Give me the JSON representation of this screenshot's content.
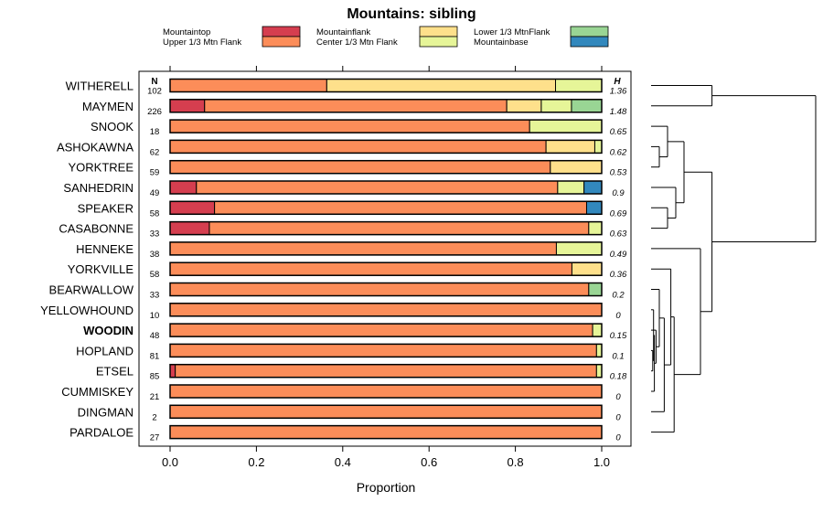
{
  "chart_data": {
    "type": "bar",
    "stacked": true,
    "orientation": "horizontal",
    "title": "Mountains: sibling",
    "xlabel": "Proportion",
    "ylabel": "",
    "xlim": [
      0,
      1
    ],
    "xticks": [
      "0.0",
      "0.2",
      "0.4",
      "0.6",
      "0.8",
      "1.0"
    ],
    "n_header": "N",
    "h_header": "H",
    "highlighted_category": "WOODIN",
    "legend": [
      {
        "name": "Mountaintop",
        "color": "#d53e4f"
      },
      {
        "name": "Upper 1/3 Mtn Flank",
        "color": "#fc8d59"
      },
      {
        "name": "Mountainflank",
        "color": "#fee08b"
      },
      {
        "name": "Center 1/3 Mtn Flank",
        "color": "#e6f598"
      },
      {
        "name": "Lower 1/3 MtnFlank",
        "color": "#99d594"
      },
      {
        "name": "Mountainbase",
        "color": "#3288bd"
      }
    ],
    "series_order": [
      "Mountaintop",
      "Upper 1/3 Mtn Flank",
      "Mountainflank",
      "Center 1/3 Mtn Flank",
      "Lower 1/3 MtnFlank",
      "Mountainbase"
    ],
    "rows": [
      {
        "name": "WITHERELL",
        "n": "102",
        "h": "1.36",
        "values": [
          0,
          0.363,
          0.53,
          0.107,
          0,
          0
        ]
      },
      {
        "name": "MAYMEN",
        "n": "226",
        "h": "1.48",
        "values": [
          0.08,
          0.7,
          0.08,
          0.07,
          0.07,
          0
        ]
      },
      {
        "name": "SNOOK",
        "n": "18",
        "h": "0.65",
        "values": [
          0,
          0.833,
          0,
          0.167,
          0,
          0
        ]
      },
      {
        "name": "ASHOKAWNA",
        "n": "62",
        "h": "0.62",
        "values": [
          0,
          0.871,
          0.113,
          0.016,
          0,
          0
        ]
      },
      {
        "name": "YORKTREE",
        "n": "59",
        "h": "0.53",
        "values": [
          0,
          0.881,
          0.119,
          0,
          0,
          0
        ]
      },
      {
        "name": "SANHEDRIN",
        "n": "49",
        "h": "0.9",
        "values": [
          0.061,
          0.837,
          0,
          0.061,
          0,
          0.041
        ]
      },
      {
        "name": "SPEAKER",
        "n": "58",
        "h": "0.69",
        "values": [
          0.103,
          0.862,
          0,
          0,
          0,
          0.035
        ]
      },
      {
        "name": "CASABONNE",
        "n": "33",
        "h": "0.63",
        "values": [
          0.091,
          0.879,
          0,
          0.03,
          0,
          0
        ]
      },
      {
        "name": "HENNEKE",
        "n": "38",
        "h": "0.49",
        "values": [
          0,
          0.895,
          0,
          0.105,
          0,
          0
        ]
      },
      {
        "name": "YORKVILLE",
        "n": "58",
        "h": "0.36",
        "values": [
          0,
          0.931,
          0.069,
          0,
          0,
          0
        ]
      },
      {
        "name": "BEARWALLOW",
        "n": "33",
        "h": "0.2",
        "values": [
          0,
          0.97,
          0,
          0,
          0.03,
          0
        ]
      },
      {
        "name": "YELLOWHOUND",
        "n": "10",
        "h": "0",
        "values": [
          0,
          1.0,
          0,
          0,
          0,
          0
        ]
      },
      {
        "name": "WOODIN",
        "n": "48",
        "h": "0.15",
        "values": [
          0,
          0.979,
          0,
          0.021,
          0,
          0
        ]
      },
      {
        "name": "HOPLAND",
        "n": "81",
        "h": "0.1",
        "values": [
          0,
          0.988,
          0,
          0.012,
          0,
          0
        ]
      },
      {
        "name": "ETSEL",
        "n": "85",
        "h": "0.18",
        "values": [
          0.012,
          0.976,
          0,
          0.012,
          0,
          0
        ]
      },
      {
        "name": "CUMMISKEY",
        "n": "21",
        "h": "0",
        "values": [
          0,
          1.0,
          0,
          0,
          0,
          0
        ]
      },
      {
        "name": "DINGMAN",
        "n": "2",
        "h": "0",
        "values": [
          0,
          1.0,
          0,
          0,
          0,
          0
        ]
      },
      {
        "name": "PARDALOE",
        "n": "27",
        "h": "0",
        "values": [
          0,
          1.0,
          0,
          0,
          0,
          0
        ]
      }
    ],
    "dendrogram": {
      "leaves": [
        "WITHERELL",
        "MAYMEN",
        "SNOOK",
        "ASHOKAWNA",
        "YORKTREE",
        "SANHEDRIN",
        "SPEAKER",
        "CASABONNE",
        "HENNEKE",
        "YORKVILLE",
        "BEARWALLOW",
        "YELLOWHOUND",
        "WOODIN",
        "HOPLAND",
        "ETSEL",
        "CUMMISKEY",
        "DINGMAN",
        "PARDALOE"
      ],
      "merges": [
        {
          "a": "L13",
          "b": "L14",
          "h": 0.01,
          "id": "m1"
        },
        {
          "a": "L11",
          "b": "m1",
          "h": 0.015,
          "id": "m2"
        },
        {
          "a": "L15",
          "b": "m2",
          "h": 0.02,
          "id": "m3"
        },
        {
          "a": "L12",
          "b": "m3",
          "h": 0.03,
          "id": "m4"
        },
        {
          "a": "L10",
          "b": "m4",
          "h": 0.05,
          "id": "m5"
        },
        {
          "a": "L16",
          "b": "m5",
          "h": 0.08,
          "id": "m6"
        },
        {
          "a": "L9",
          "b": "m6",
          "h": 0.12,
          "id": "m7"
        },
        {
          "a": "L17",
          "b": "m7",
          "h": 0.14,
          "id": "m8"
        },
        {
          "a": "L3",
          "b": "L4",
          "h": 0.05,
          "id": "m9"
        },
        {
          "a": "L2",
          "b": "m9",
          "h": 0.1,
          "id": "m10"
        },
        {
          "a": "L6",
          "b": "L7",
          "h": 0.1,
          "id": "m11"
        },
        {
          "a": "L5",
          "b": "m11",
          "h": 0.15,
          "id": "m12"
        },
        {
          "a": "m10",
          "b": "m12",
          "h": 0.2,
          "id": "m13"
        },
        {
          "a": "L8",
          "b": "m8",
          "h": 0.3,
          "id": "m14"
        },
        {
          "a": "m13",
          "b": "m14",
          "h": 0.37,
          "id": "m15"
        },
        {
          "a": "L0",
          "b": "L1",
          "h": 0.37,
          "id": "m16"
        },
        {
          "a": "m15",
          "b": "m16",
          "h": 1.0,
          "id": "m17"
        }
      ]
    }
  }
}
